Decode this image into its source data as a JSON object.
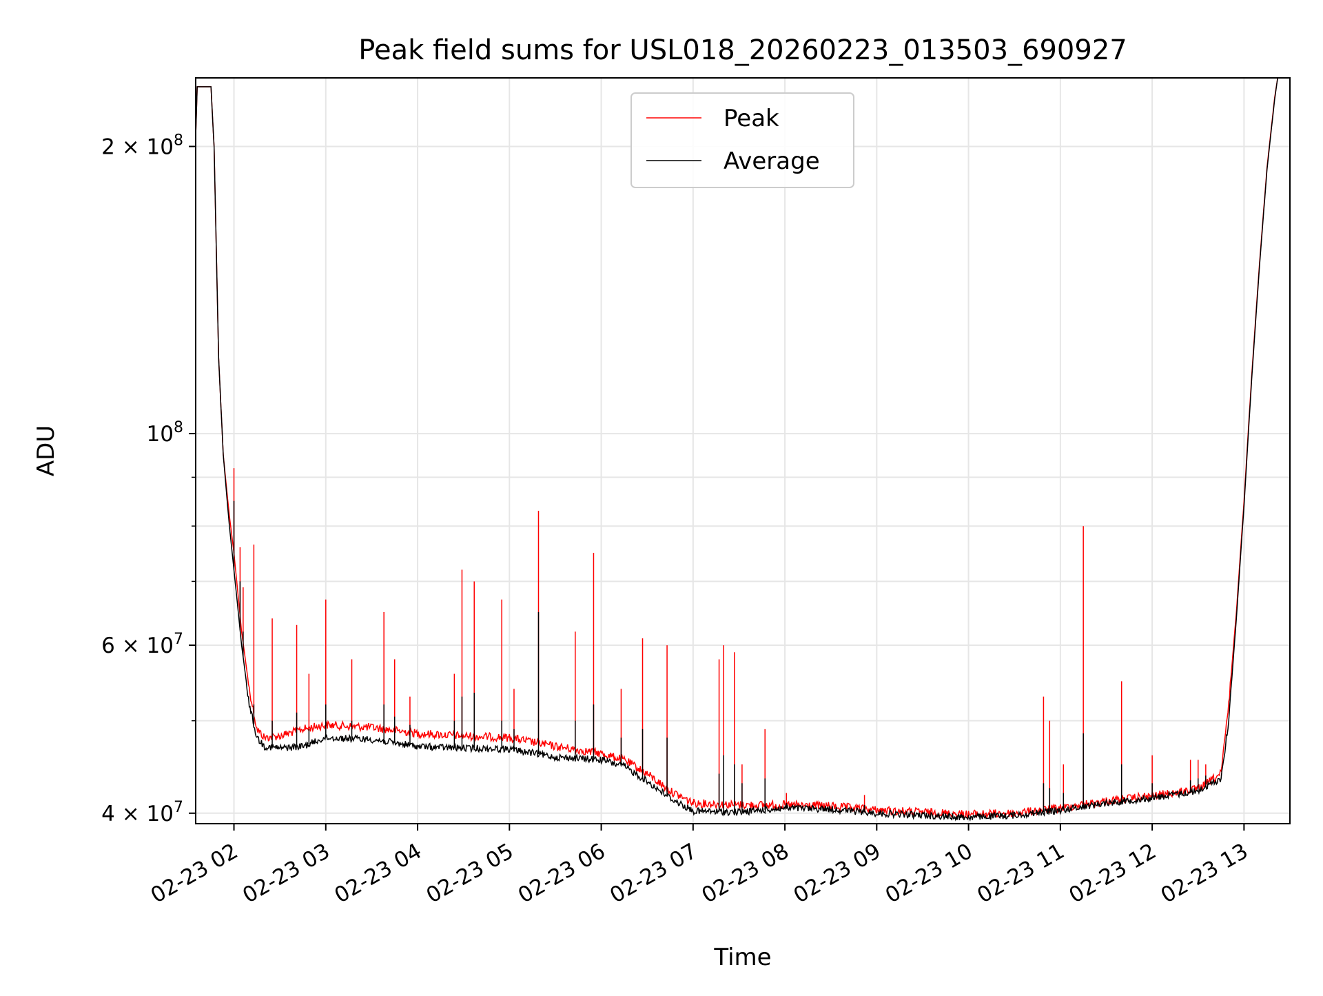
{
  "chart_data": {
    "type": "line",
    "title": "Peak field sums for USL018_20260223_013503_690927",
    "xlabel": "Time",
    "ylabel": "ADU",
    "yscale": "log",
    "grid": true,
    "legend_position": "upper-center",
    "xlim": [
      "2026-02-23 01:35",
      "2026-02-23 13:30"
    ],
    "ylim": [
      39000000,
      236000000
    ],
    "x_ticks": [
      {
        "value": "2026-02-23 02:00",
        "label": "02-23 02"
      },
      {
        "value": "2026-02-23 03:00",
        "label": "02-23 03"
      },
      {
        "value": "2026-02-23 04:00",
        "label": "02-23 04"
      },
      {
        "value": "2026-02-23 05:00",
        "label": "02-23 05"
      },
      {
        "value": "2026-02-23 06:00",
        "label": "02-23 06"
      },
      {
        "value": "2026-02-23 07:00",
        "label": "02-23 07"
      },
      {
        "value": "2026-02-23 08:00",
        "label": "02-23 08"
      },
      {
        "value": "2026-02-23 09:00",
        "label": "02-23 09"
      },
      {
        "value": "2026-02-23 10:00",
        "label": "02-23 10"
      },
      {
        "value": "2026-02-23 11:00",
        "label": "02-23 11"
      },
      {
        "value": "2026-02-23 12:00",
        "label": "02-23 12"
      },
      {
        "value": "2026-02-23 13:00",
        "label": "02-23 13"
      }
    ],
    "y_major_ticks": [
      {
        "value": 40000000,
        "mantissa": "4",
        "exponent": "7"
      },
      {
        "value": 60000000,
        "mantissa": "6",
        "exponent": "7"
      },
      {
        "value": 100000000,
        "mantissa": "",
        "exponent": "8"
      },
      {
        "value": 200000000,
        "mantissa": "2",
        "exponent": "8"
      }
    ],
    "y_minor_ticks": [
      50000000,
      70000000,
      80000000,
      90000000
    ],
    "series": [
      {
        "name": "Peak",
        "color": "#ff0000",
        "points": [
          [
            "2026-02-23 01:35",
            205000000
          ],
          [
            "2026-02-23 01:36",
            231000000
          ],
          [
            "2026-02-23 01:45",
            231000000
          ],
          [
            "2026-02-23 01:47",
            200000000
          ],
          [
            "2026-02-23 01:50",
            120000000
          ],
          [
            "2026-02-23 01:53",
            95000000
          ],
          [
            "2026-02-23 01:57",
            82000000
          ],
          [
            "2026-02-23 02:00",
            75000000
          ],
          [
            "2026-02-23 02:05",
            62000000
          ],
          [
            "2026-02-23 02:10",
            54000000
          ],
          [
            "2026-02-23 02:15",
            49000000
          ],
          [
            "2026-02-23 02:20",
            48000000
          ],
          [
            "2026-02-23 02:30",
            48200000
          ],
          [
            "2026-02-23 02:45",
            49000000
          ],
          [
            "2026-02-23 03:00",
            49500000
          ],
          [
            "2026-02-23 03:30",
            49200000
          ],
          [
            "2026-02-23 04:00",
            48500000
          ],
          [
            "2026-02-23 04:30",
            48200000
          ],
          [
            "2026-02-23 05:00",
            48000000
          ],
          [
            "2026-02-23 05:30",
            47000000
          ],
          [
            "2026-02-23 06:00",
            46200000
          ],
          [
            "2026-02-23 06:15",
            45500000
          ],
          [
            "2026-02-23 06:30",
            44000000
          ],
          [
            "2026-02-23 06:45",
            42200000
          ],
          [
            "2026-02-23 07:00",
            41000000
          ],
          [
            "2026-02-23 07:30",
            40800000
          ],
          [
            "2026-02-23 08:00",
            40800000
          ],
          [
            "2026-02-23 08:30",
            40700000
          ],
          [
            "2026-02-23 09:00",
            40300000
          ],
          [
            "2026-02-23 09:30",
            40100000
          ],
          [
            "2026-02-23 10:00",
            39900000
          ],
          [
            "2026-02-23 10:30",
            40000000
          ],
          [
            "2026-02-23 11:00",
            40500000
          ],
          [
            "2026-02-23 11:30",
            41200000
          ],
          [
            "2026-02-23 12:00",
            41700000
          ],
          [
            "2026-02-23 12:30",
            42400000
          ],
          [
            "2026-02-23 12:45",
            44000000
          ],
          [
            "2026-02-23 12:50",
            52000000
          ],
          [
            "2026-02-23 12:55",
            65000000
          ],
          [
            "2026-02-23 13:00",
            85000000
          ],
          [
            "2026-02-23 13:05",
            115000000
          ],
          [
            "2026-02-23 13:10",
            150000000
          ],
          [
            "2026-02-23 13:15",
            190000000
          ],
          [
            "2026-02-23 13:20",
            225000000
          ],
          [
            "2026-02-23 13:22",
            236000000
          ]
        ]
      },
      {
        "name": "Average",
        "color": "#000000",
        "points": [
          [
            "2026-02-23 01:35",
            205000000
          ],
          [
            "2026-02-23 01:36",
            231000000
          ],
          [
            "2026-02-23 01:45",
            231000000
          ],
          [
            "2026-02-23 01:47",
            200000000
          ],
          [
            "2026-02-23 01:50",
            120000000
          ],
          [
            "2026-02-23 01:53",
            95000000
          ],
          [
            "2026-02-23 01:57",
            80000000
          ],
          [
            "2026-02-23 02:00",
            72000000
          ],
          [
            "2026-02-23 02:05",
            60000000
          ],
          [
            "2026-02-23 02:10",
            52000000
          ],
          [
            "2026-02-23 02:15",
            48000000
          ],
          [
            "2026-02-23 02:20",
            47000000
          ],
          [
            "2026-02-23 02:30",
            46800000
          ],
          [
            "2026-02-23 02:45",
            47000000
          ],
          [
            "2026-02-23 03:00",
            48000000
          ],
          [
            "2026-02-23 03:30",
            47800000
          ],
          [
            "2026-02-23 04:00",
            47000000
          ],
          [
            "2026-02-23 04:30",
            46800000
          ],
          [
            "2026-02-23 05:00",
            46700000
          ],
          [
            "2026-02-23 05:30",
            45800000
          ],
          [
            "2026-02-23 06:00",
            45500000
          ],
          [
            "2026-02-23 06:15",
            44800000
          ],
          [
            "2026-02-23 06:30",
            43200000
          ],
          [
            "2026-02-23 06:45",
            41500000
          ],
          [
            "2026-02-23 07:00",
            40200000
          ],
          [
            "2026-02-23 07:30",
            40100000
          ],
          [
            "2026-02-23 08:00",
            40500000
          ],
          [
            "2026-02-23 08:30",
            40400000
          ],
          [
            "2026-02-23 09:00",
            40000000
          ],
          [
            "2026-02-23 09:30",
            39800000
          ],
          [
            "2026-02-23 10:00",
            39600000
          ],
          [
            "2026-02-23 10:30",
            39800000
          ],
          [
            "2026-02-23 11:00",
            40300000
          ],
          [
            "2026-02-23 11:30",
            41000000
          ],
          [
            "2026-02-23 12:00",
            41500000
          ],
          [
            "2026-02-23 12:30",
            42200000
          ],
          [
            "2026-02-23 12:45",
            43500000
          ],
          [
            "2026-02-23 12:50",
            50000000
          ],
          [
            "2026-02-23 12:55",
            64000000
          ],
          [
            "2026-02-23 13:00",
            84000000
          ],
          [
            "2026-02-23 13:05",
            114000000
          ],
          [
            "2026-02-23 13:10",
            149000000
          ],
          [
            "2026-02-23 13:15",
            189000000
          ],
          [
            "2026-02-23 13:20",
            224000000
          ],
          [
            "2026-02-23 13:22",
            236000000
          ]
        ]
      }
    ],
    "spikes": [
      {
        "x": "2026-02-23 02:00",
        "peak": 92000000,
        "average": 85000000
      },
      {
        "x": "2026-02-23 02:04",
        "peak": 76000000,
        "average": 70000000
      },
      {
        "x": "2026-02-23 02:06",
        "peak": 69000000,
        "average": 62000000
      },
      {
        "x": "2026-02-23 02:13",
        "peak": 76500000,
        "average": 52000000
      },
      {
        "x": "2026-02-23 02:25",
        "peak": 64000000,
        "average": 50000000
      },
      {
        "x": "2026-02-23 02:41",
        "peak": 63000000,
        "average": 51000000
      },
      {
        "x": "2026-02-23 02:49",
        "peak": 56000000,
        "average": 49000000
      },
      {
        "x": "2026-02-23 03:00",
        "peak": 67000000,
        "average": 52000000
      },
      {
        "x": "2026-02-23 03:17",
        "peak": 58000000,
        "average": 50000000
      },
      {
        "x": "2026-02-23 03:38",
        "peak": 65000000,
        "average": 52000000
      },
      {
        "x": "2026-02-23 03:45",
        "peak": 58000000,
        "average": 50500000
      },
      {
        "x": "2026-02-23 03:55",
        "peak": 53000000,
        "average": 49500000
      },
      {
        "x": "2026-02-23 04:24",
        "peak": 56000000,
        "average": 50000000
      },
      {
        "x": "2026-02-23 04:29",
        "peak": 72000000,
        "average": 53000000
      },
      {
        "x": "2026-02-23 04:37",
        "peak": 70000000,
        "average": 53500000
      },
      {
        "x": "2026-02-23 04:55",
        "peak": 67000000,
        "average": 50000000
      },
      {
        "x": "2026-02-23 05:03",
        "peak": 54000000,
        "average": 49000000
      },
      {
        "x": "2026-02-23 05:19",
        "peak": 83000000,
        "average": 65000000
      },
      {
        "x": "2026-02-23 05:43",
        "peak": 62000000,
        "average": 50000000
      },
      {
        "x": "2026-02-23 05:55",
        "peak": 75000000,
        "average": 52000000
      },
      {
        "x": "2026-02-23 06:13",
        "peak": 54000000,
        "average": 48000000
      },
      {
        "x": "2026-02-23 06:27",
        "peak": 61000000,
        "average": 49000000
      },
      {
        "x": "2026-02-23 06:43",
        "peak": 60000000,
        "average": 48000000
      },
      {
        "x": "2026-02-23 07:17",
        "peak": 58000000,
        "average": 44000000
      },
      {
        "x": "2026-02-23 07:20",
        "peak": 60000000,
        "average": 46000000
      },
      {
        "x": "2026-02-23 07:27",
        "peak": 59000000,
        "average": 45000000
      },
      {
        "x": "2026-02-23 07:32",
        "peak": 45000000,
        "average": 43000000
      },
      {
        "x": "2026-02-23 07:47",
        "peak": 49000000,
        "average": 43500000
      },
      {
        "x": "2026-02-23 08:01",
        "peak": 42000000,
        "average": 41000000
      },
      {
        "x": "2026-02-23 08:52",
        "peak": 41800000,
        "average": 40800000
      },
      {
        "x": "2026-02-23 10:49",
        "peak": 53000000,
        "average": 43000000
      },
      {
        "x": "2026-02-23 10:53",
        "peak": 50000000,
        "average": 42500000
      },
      {
        "x": "2026-02-23 11:02",
        "peak": 45000000,
        "average": 42000000
      },
      {
        "x": "2026-02-23 11:15",
        "peak": 80000000,
        "average": 48500000
      },
      {
        "x": "2026-02-23 11:40",
        "peak": 55000000,
        "average": 45000000
      },
      {
        "x": "2026-02-23 12:00",
        "peak": 46000000,
        "average": 43000000
      },
      {
        "x": "2026-02-23 12:25",
        "peak": 45500000,
        "average": 43300000
      },
      {
        "x": "2026-02-23 12:30",
        "peak": 45500000,
        "average": 43500000
      },
      {
        "x": "2026-02-23 12:35",
        "peak": 45000000,
        "average": 43800000
      }
    ]
  }
}
